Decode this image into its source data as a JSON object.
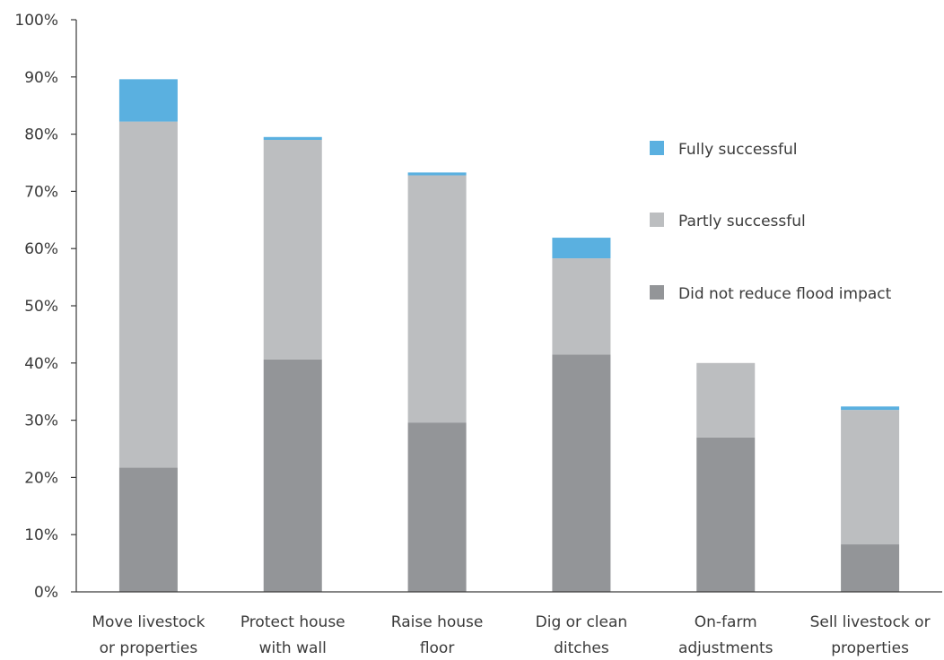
{
  "chart_data": {
    "type": "bar",
    "stacked": true,
    "categories": [
      [
        "Move livestock",
        "or properties"
      ],
      [
        "Protect house",
        "with wall"
      ],
      [
        "Raise house",
        "floor"
      ],
      [
        "Dig or clean",
        "ditches"
      ],
      [
        "On-farm",
        "adjustments"
      ],
      [
        "Sell livestock or",
        "properties"
      ]
    ],
    "series": [
      {
        "name": "Did not reduce flood impact",
        "color": "#939598",
        "values": [
          21.7,
          40.6,
          29.6,
          41.5,
          27.0,
          8.3
        ]
      },
      {
        "name": "Partly successful",
        "color": "#bcbec0",
        "values": [
          60.5,
          38.4,
          43.2,
          16.8,
          13.0,
          23.5
        ]
      },
      {
        "name": "Fully successful",
        "color": "#5ab0e0",
        "values": [
          7.4,
          0.5,
          0.5,
          3.6,
          0.0,
          0.6
        ]
      }
    ],
    "yaxis": {
      "ticks": [
        "0%",
        "10%",
        "20%",
        "30%",
        "40%",
        "50%",
        "60%",
        "70%",
        "80%",
        "90%",
        "100%"
      ],
      "ylim": [
        0,
        100
      ]
    },
    "legend": {
      "placement": "right",
      "order": [
        "Fully successful",
        "Partly successful",
        "Did not reduce flood impact"
      ]
    },
    "grid": false
  }
}
